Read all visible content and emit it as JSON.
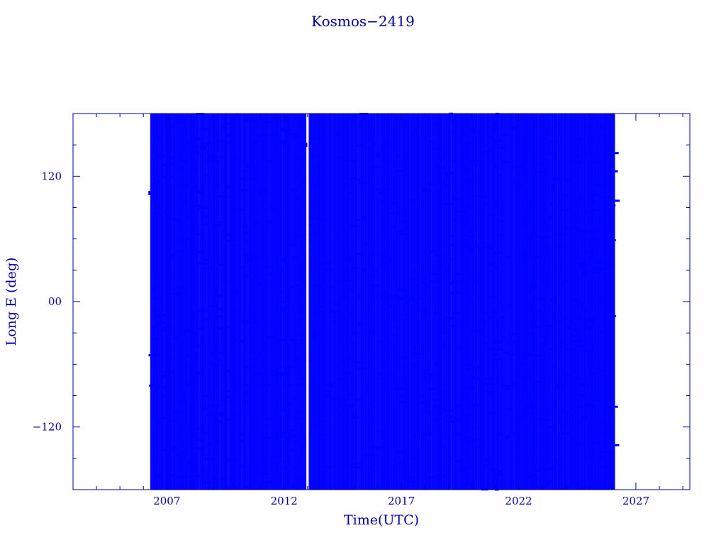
{
  "chart_data": {
    "type": "scatter",
    "title": "Kosmos−2419",
    "xlabel": "Time(UTC)",
    "ylabel": "Long E (deg)",
    "xlim": [
      2003.0,
      2029.3
    ],
    "ylim": [
      -180,
      180
    ],
    "x_ticks": [
      2007,
      2012,
      2017,
      2022,
      2027
    ],
    "x_tick_labels": [
      "2007",
      "2012",
      "2017",
      "2022",
      "2027"
    ],
    "y_ticks": [
      120,
      0,
      -120
    ],
    "y_tick_labels": [
      "120",
      "00",
      "−120"
    ],
    "grid": false,
    "data_range_x": [
      2006.3,
      2026.1
    ],
    "colors": {
      "data": "#0000ff",
      "axes": "#0000a0"
    },
    "series": [
      {
        "x": [
          2006.3,
          2006.5,
          2006.8,
          2007.0,
          2007.3,
          2007.6,
          2008.0,
          2008.5,
          2009.0,
          2009.5,
          2010.0,
          2010.5,
          2011.0,
          2011.5,
          2012.0,
          2012.5,
          2012.9,
          2013.2,
          2013.6,
          2014.0,
          2014.3,
          2014.7,
          2015.0,
          2015.4,
          2015.7,
          2016.0,
          2016.5,
          2017.0,
          2017.5,
          2018.0,
          2018.5,
          2019.0,
          2019.5,
          2020.0,
          2020.5,
          2021.0,
          2021.5,
          2022.0,
          2022.5,
          2023.0,
          2023.5,
          2024.0,
          2024.5,
          2025.0,
          2025.5,
          2026.0
        ],
        "y": [
          104,
          -8,
          -90,
          170,
          -140,
          60,
          -120,
          150,
          -60,
          20,
          10,
          130,
          -50,
          90,
          40,
          -160,
          150,
          50,
          100,
          -80,
          160,
          30,
          -110,
          80,
          -30,
          140,
          40,
          -90,
          160,
          10,
          -60,
          120,
          -100,
          50,
          -20,
          170,
          -130,
          90,
          -5,
          60,
          110,
          -70,
          140,
          -150,
          0,
          130
        ]
      }
    ]
  }
}
